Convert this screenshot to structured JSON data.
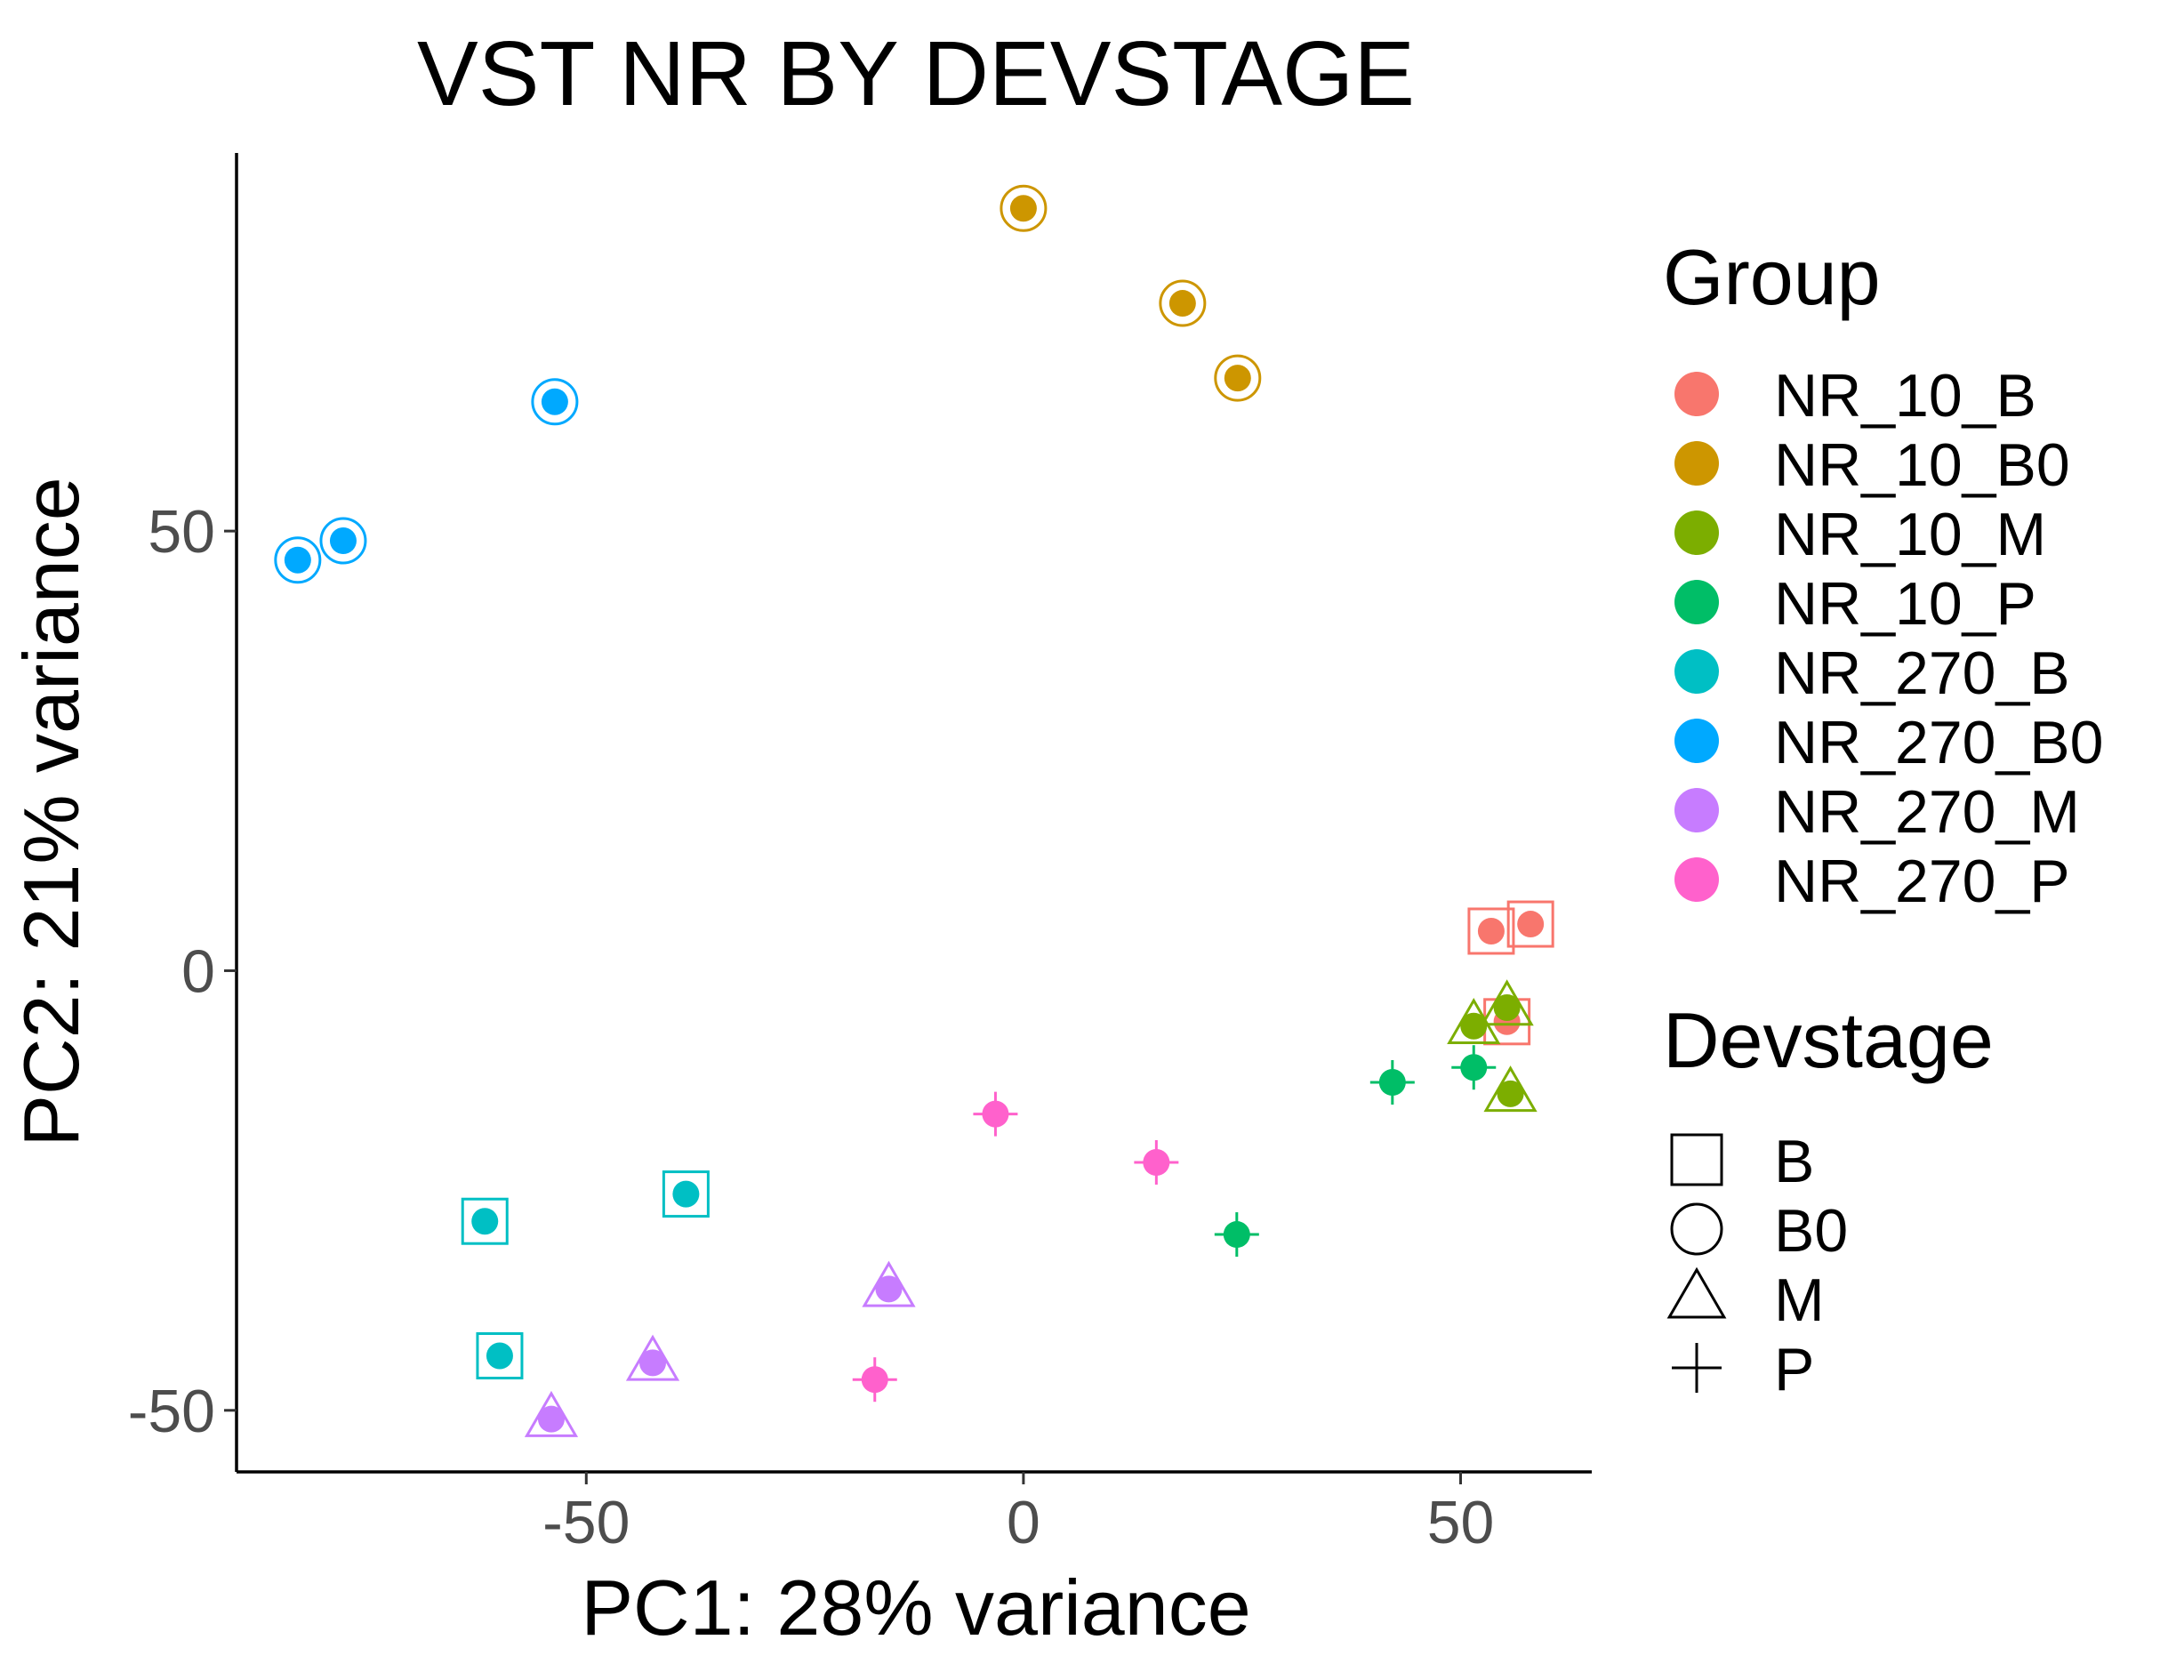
{
  "chart_data": {
    "type": "scatter",
    "title": "VST NR BY DEVSTAGE",
    "xlabel": "PC1: 28% variance",
    "ylabel": "PC2: 21% variance",
    "xlim": [
      -90,
      65
    ],
    "ylim": [
      -57,
      93
    ],
    "x_ticks": [
      -50,
      0,
      50
    ],
    "y_ticks": [
      -50,
      0,
      50
    ],
    "x_tick_labels": [
      "-50",
      "0",
      "50"
    ],
    "y_tick_labels": [
      "-50",
      "0",
      "50"
    ],
    "grid": false,
    "legend_position": "right",
    "groups": [
      {
        "name": "NR_10_B",
        "color": "#F8766D"
      },
      {
        "name": "NR_10_B0",
        "color": "#CD9600"
      },
      {
        "name": "NR_10_M",
        "color": "#7CAE00"
      },
      {
        "name": "NR_10_P",
        "color": "#00BE67"
      },
      {
        "name": "NR_270_B",
        "color": "#00BFC4"
      },
      {
        "name": "NR_270_B0",
        "color": "#00A9FF"
      },
      {
        "name": "NR_270_M",
        "color": "#C77CFF"
      },
      {
        "name": "NR_270_P",
        "color": "#FF61CC"
      }
    ],
    "devstages": [
      {
        "name": "B",
        "shape": "square"
      },
      {
        "name": "B0",
        "shape": "circle"
      },
      {
        "name": "M",
        "shape": "triangle"
      },
      {
        "name": "P",
        "shape": "plus"
      }
    ],
    "legend_group_title": "Group",
    "legend_devstage_title": "Devstage",
    "points": [
      {
        "x": 53.5,
        "y": 4.5,
        "group": "NR_10_B",
        "devstage": "B"
      },
      {
        "x": 58.0,
        "y": 5.3,
        "group": "NR_10_B",
        "devstage": "B"
      },
      {
        "x": 55.3,
        "y": -5.8,
        "group": "NR_10_B",
        "devstage": "B"
      },
      {
        "x": 0.0,
        "y": 86.7,
        "group": "NR_10_B0",
        "devstage": "B0"
      },
      {
        "x": 18.2,
        "y": 75.9,
        "group": "NR_10_B0",
        "devstage": "B0"
      },
      {
        "x": 24.5,
        "y": 67.4,
        "group": "NR_10_B0",
        "devstage": "B0"
      },
      {
        "x": 55.3,
        "y": -4.2,
        "group": "NR_10_M",
        "devstage": "M"
      },
      {
        "x": 51.5,
        "y": -6.3,
        "group": "NR_10_M",
        "devstage": "M"
      },
      {
        "x": 55.7,
        "y": -14.0,
        "group": "NR_10_M",
        "devstage": "M"
      },
      {
        "x": 42.2,
        "y": -12.7,
        "group": "NR_10_P",
        "devstage": "P"
      },
      {
        "x": 51.5,
        "y": -11.0,
        "group": "NR_10_P",
        "devstage": "P"
      },
      {
        "x": 24.4,
        "y": -30.0,
        "group": "NR_10_P",
        "devstage": "P"
      },
      {
        "x": -61.6,
        "y": -28.5,
        "group": "NR_270_B",
        "devstage": "B"
      },
      {
        "x": -38.6,
        "y": -25.4,
        "group": "NR_270_B",
        "devstage": "B"
      },
      {
        "x": -59.9,
        "y": -43.8,
        "group": "NR_270_B",
        "devstage": "B"
      },
      {
        "x": -53.6,
        "y": 64.7,
        "group": "NR_270_B0",
        "devstage": "B0"
      },
      {
        "x": -77.8,
        "y": 48.9,
        "group": "NR_270_B0",
        "devstage": "B0"
      },
      {
        "x": -83.0,
        "y": 46.7,
        "group": "NR_270_B0",
        "devstage": "B0"
      },
      {
        "x": -15.4,
        "y": -36.2,
        "group": "NR_270_M",
        "devstage": "M"
      },
      {
        "x": -42.4,
        "y": -44.6,
        "group": "NR_270_M",
        "devstage": "M"
      },
      {
        "x": -54.0,
        "y": -51.0,
        "group": "NR_270_M",
        "devstage": "M"
      },
      {
        "x": -3.2,
        "y": -16.3,
        "group": "NR_270_P",
        "devstage": "P"
      },
      {
        "x": 15.2,
        "y": -21.8,
        "group": "NR_270_P",
        "devstage": "P"
      },
      {
        "x": -17.0,
        "y": -46.5,
        "group": "NR_270_P",
        "devstage": "P"
      }
    ]
  }
}
